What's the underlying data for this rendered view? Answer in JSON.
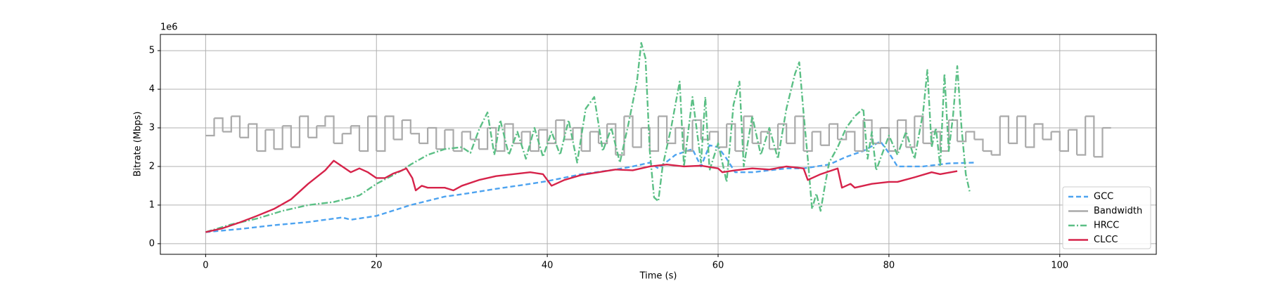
{
  "chart_data": {
    "type": "line",
    "xlabel": "Time (s)",
    "ylabel": "Bitrate (Mbps)",
    "y_offset_text": "1e6",
    "xlim": [
      -5.3,
      111.3
    ],
    "ylim": [
      -0.275,
      5.42
    ],
    "xticks": [
      0,
      20,
      40,
      60,
      80,
      100
    ],
    "yticks": [
      0,
      1,
      2,
      3,
      4,
      5
    ],
    "grid": true,
    "legend": "lower right",
    "series": [
      {
        "name": "GCC",
        "color": "#4da3f0",
        "linestyle": "dashed",
        "x": [
          0,
          4,
          8,
          12,
          16,
          17,
          20,
          24,
          28,
          30,
          34,
          38,
          40,
          44,
          48,
          50,
          52,
          53,
          55,
          57,
          58,
          59,
          60,
          61,
          62,
          64,
          66,
          68,
          70,
          73,
          75,
          77,
          79,
          80,
          81,
          84,
          87,
          90
        ],
        "values": [
          0.3,
          0.38,
          0.48,
          0.56,
          0.68,
          0.62,
          0.72,
          1.0,
          1.22,
          1.28,
          1.42,
          1.55,
          1.62,
          1.8,
          1.92,
          2.0,
          2.1,
          1.95,
          2.3,
          2.45,
          2.0,
          2.55,
          2.5,
          2.2,
          1.85,
          1.85,
          1.9,
          1.95,
          1.95,
          2.05,
          2.25,
          2.4,
          2.65,
          2.35,
          2.0,
          2.0,
          2.08,
          2.1
        ]
      },
      {
        "name": "Bandwidth",
        "color": "#aaaaaa",
        "linestyle": "steps",
        "x": [
          0,
          1,
          2,
          3,
          4,
          5,
          6,
          7,
          8,
          9,
          10,
          11,
          12,
          13,
          14,
          15,
          16,
          17,
          18,
          19,
          20,
          21,
          22,
          23,
          24,
          25,
          26,
          27,
          28,
          29,
          30,
          31,
          32,
          33,
          34,
          35,
          36,
          37,
          38,
          39,
          40,
          41,
          42,
          43,
          44,
          45,
          46,
          47,
          48,
          49,
          50,
          51,
          52,
          53,
          54,
          55,
          56,
          57,
          58,
          59,
          60,
          61,
          62,
          63,
          64,
          65,
          66,
          67,
          68,
          69,
          70,
          71,
          72,
          73,
          74,
          75,
          76,
          77,
          78,
          79,
          80,
          81,
          82,
          83,
          84,
          85,
          86,
          87,
          88,
          89,
          90,
          91,
          92,
          93,
          94,
          95,
          96,
          97,
          98,
          99,
          100,
          101,
          102,
          103,
          104,
          105,
          106
        ],
        "values": [
          2.8,
          3.25,
          2.9,
          3.3,
          2.75,
          3.1,
          2.4,
          2.95,
          2.45,
          3.05,
          2.5,
          3.3,
          2.75,
          3.05,
          3.3,
          2.6,
          2.85,
          3.05,
          2.4,
          3.3,
          2.4,
          3.3,
          2.7,
          3.2,
          2.85,
          2.6,
          3.0,
          2.45,
          2.95,
          2.4,
          2.9,
          2.7,
          2.45,
          3.0,
          2.4,
          3.1,
          2.6,
          2.9,
          2.4,
          2.95,
          2.6,
          3.2,
          2.7,
          3.0,
          2.4,
          2.9,
          2.6,
          3.1,
          2.3,
          3.3,
          2.5,
          3.0,
          2.4,
          3.3,
          2.6,
          3.0,
          2.4,
          3.2,
          2.7,
          2.9,
          2.5,
          3.1,
          2.4,
          3.3,
          2.6,
          2.9,
          2.45,
          3.1,
          2.6,
          3.3,
          2.4,
          2.9,
          2.55,
          3.1,
          2.7,
          2.9,
          2.4,
          3.2,
          2.6,
          3.0,
          2.4,
          3.2,
          2.5,
          3.3,
          2.6,
          2.9,
          2.4,
          3.2,
          2.65,
          2.9,
          2.7,
          2.4,
          2.3,
          3.3,
          2.6,
          3.3,
          2.5,
          3.1,
          2.7,
          2.9,
          2.4,
          2.95,
          2.3,
          3.3,
          2.25,
          3.0,
          3.0
        ]
      },
      {
        "name": "HRCC",
        "color": "#5bbf85",
        "linestyle": "dashdot",
        "x": [
          0,
          3,
          6,
          9,
          12,
          15,
          18,
          20,
          23,
          24,
          26,
          28,
          30,
          31,
          32,
          33,
          33.8,
          34.5,
          35.5,
          36.5,
          37.5,
          38.5,
          39.5,
          40.5,
          41.5,
          42.5,
          43.5,
          44.5,
          45.5,
          46.5,
          47.5,
          48.5,
          49.5,
          50.5,
          51,
          51.5,
          52,
          52.5,
          53,
          53.5,
          54.5,
          55.5,
          56,
          57,
          58,
          58.5,
          59,
          60,
          61,
          61.8,
          62.5,
          63,
          64,
          65,
          66,
          67,
          68,
          69,
          69.5,
          70,
          70.5,
          71,
          71.5,
          72,
          72.5,
          73,
          74,
          75,
          76,
          77,
          77.5,
          78,
          78.5,
          79,
          80,
          81,
          82,
          83,
          84,
          84.5,
          85,
          85.5,
          86,
          86.5,
          87,
          87.5,
          88,
          88.5,
          89,
          89.5
        ],
        "values": [
          0.3,
          0.5,
          0.65,
          0.85,
          1.0,
          1.08,
          1.25,
          1.55,
          1.9,
          2.05,
          2.3,
          2.45,
          2.5,
          2.35,
          2.95,
          3.4,
          2.3,
          3.2,
          2.3,
          2.9,
          2.2,
          3.0,
          2.25,
          2.9,
          2.3,
          3.2,
          2.1,
          3.5,
          3.8,
          2.4,
          3.0,
          2.1,
          3.1,
          4.2,
          5.2,
          4.8,
          2.4,
          1.2,
          1.1,
          2.0,
          3.0,
          4.2,
          2.0,
          3.8,
          2.1,
          3.8,
          1.9,
          2.6,
          1.6,
          3.6,
          4.2,
          2.0,
          3.3,
          2.3,
          3.0,
          2.2,
          3.5,
          4.4,
          4.7,
          3.4,
          2.2,
          0.9,
          1.3,
          0.85,
          1.5,
          2.1,
          2.5,
          3.0,
          3.3,
          3.5,
          2.2,
          2.9,
          1.9,
          2.2,
          2.8,
          2.3,
          2.9,
          2.2,
          3.4,
          4.5,
          2.5,
          3.0,
          2.0,
          4.4,
          2.4,
          3.3,
          4.6,
          3.0,
          1.8,
          1.3
        ]
      },
      {
        "name": "CLCC",
        "color": "#d6234a",
        "linestyle": "solid",
        "x": [
          0,
          2,
          4,
          6,
          8,
          10,
          12,
          14,
          15,
          16,
          17,
          18,
          19,
          20,
          21,
          22,
          23,
          23.5,
          24.2,
          24.6,
          25.3,
          26,
          28,
          29,
          30,
          32,
          34,
          36,
          38,
          39.5,
          40.5,
          42,
          44,
          46,
          48,
          50,
          52,
          54,
          56,
          58,
          60,
          60.5,
          62,
          64,
          66,
          68,
          70,
          70.5,
          72,
          74,
          74.5,
          75.5,
          76,
          78,
          80,
          81,
          83,
          85,
          86,
          88
        ],
        "values": [
          0.3,
          0.4,
          0.55,
          0.72,
          0.9,
          1.15,
          1.55,
          1.9,
          2.15,
          2.0,
          1.85,
          1.95,
          1.85,
          1.7,
          1.7,
          1.82,
          1.9,
          1.95,
          1.7,
          1.38,
          1.5,
          1.45,
          1.45,
          1.38,
          1.5,
          1.65,
          1.75,
          1.8,
          1.85,
          1.8,
          1.5,
          1.65,
          1.78,
          1.85,
          1.92,
          1.9,
          2.0,
          2.05,
          2.0,
          2.02,
          1.95,
          1.85,
          1.9,
          1.95,
          1.92,
          2.0,
          1.95,
          1.65,
          1.8,
          1.95,
          1.45,
          1.55,
          1.45,
          1.55,
          1.6,
          1.6,
          1.72,
          1.85,
          1.8,
          1.88
        ]
      }
    ]
  }
}
